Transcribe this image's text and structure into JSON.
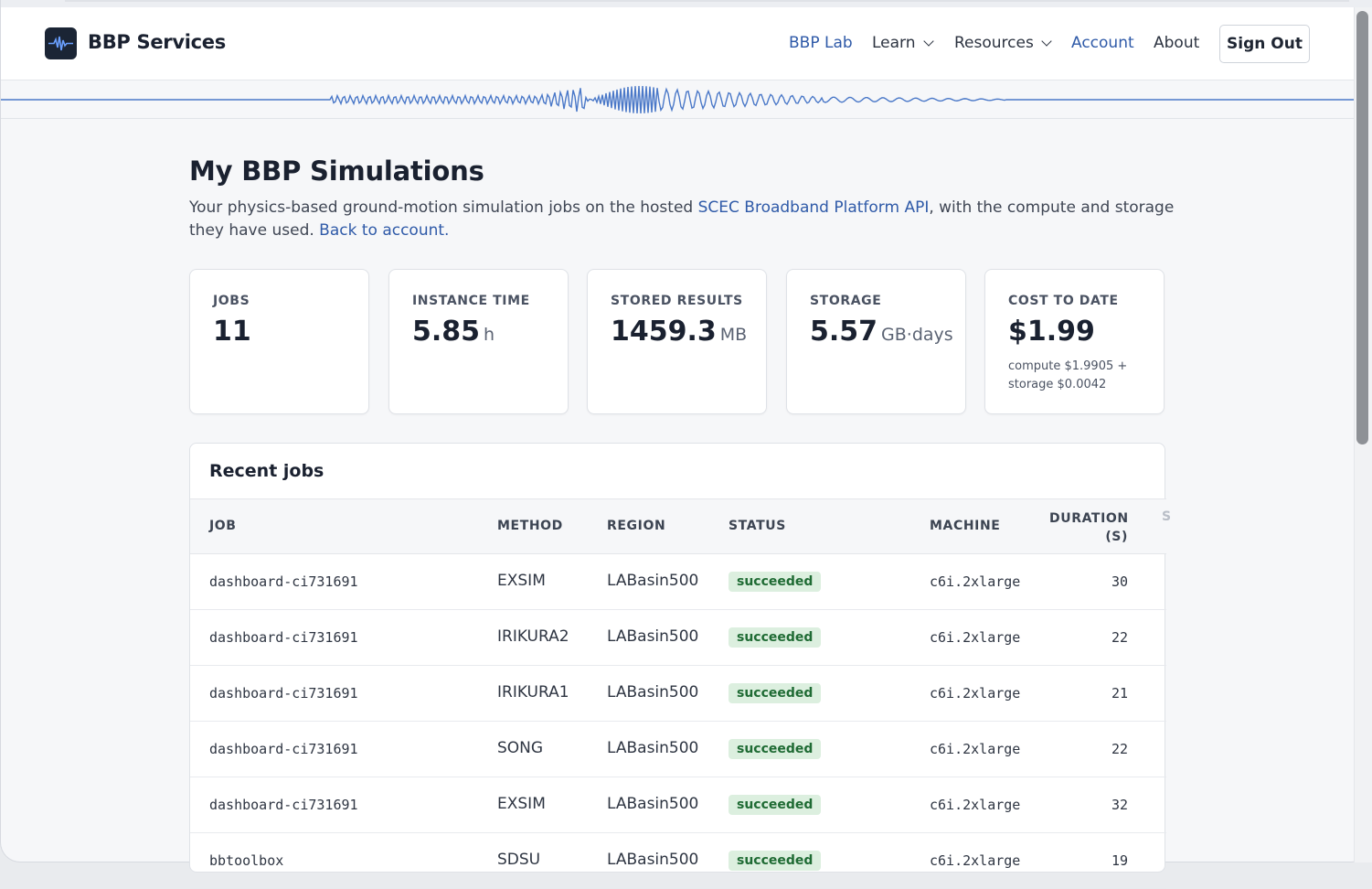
{
  "nav": {
    "brand": "BBP Services",
    "links": [
      {
        "label": "BBP Lab",
        "active": true,
        "dropdown": false
      },
      {
        "label": "Learn",
        "active": false,
        "dropdown": true
      },
      {
        "label": "Resources",
        "active": false,
        "dropdown": true
      },
      {
        "label": "Account",
        "active": true,
        "dropdown": false
      },
      {
        "label": "About",
        "active": false,
        "dropdown": false
      }
    ],
    "sign_out": "Sign Out"
  },
  "page": {
    "title": "My BBP Simulations",
    "subtitle_pre": "Your physics-based ground-motion simulation jobs on the hosted ",
    "subtitle_link": "SCEC Broadband Platform API",
    "subtitle_mid": ", with the compute and storage they have used. ",
    "back_link": "Back to account."
  },
  "stats": [
    {
      "label": "JOBS",
      "value": "11",
      "unit": ""
    },
    {
      "label": "INSTANCE TIME",
      "value": "5.85",
      "unit": "h"
    },
    {
      "label": "STORED RESULTS",
      "value": "1459.3",
      "unit": "MB"
    },
    {
      "label": "STORAGE",
      "value": "5.57",
      "unit": "GB·days"
    },
    {
      "label": "COST TO DATE",
      "value": "$1.99",
      "unit": "",
      "note": "compute $1.9905 + storage $0.0042"
    }
  ],
  "jobs": {
    "title": "Recent jobs",
    "columns": [
      "JOB",
      "METHOD",
      "REGION",
      "STATUS",
      "MACHINE",
      "DURATION (S)",
      "S"
    ],
    "rows": [
      {
        "job": "dashboard-ci731691",
        "method": "EXSIM",
        "region": "LABasin500",
        "status": "succeeded",
        "machine": "c6i.2xlarge",
        "duration": "30"
      },
      {
        "job": "dashboard-ci731691",
        "method": "IRIKURA2",
        "region": "LABasin500",
        "status": "succeeded",
        "machine": "c6i.2xlarge",
        "duration": "22"
      },
      {
        "job": "dashboard-ci731691",
        "method": "IRIKURA1",
        "region": "LABasin500",
        "status": "succeeded",
        "machine": "c6i.2xlarge",
        "duration": "21"
      },
      {
        "job": "dashboard-ci731691",
        "method": "SONG",
        "region": "LABasin500",
        "status": "succeeded",
        "machine": "c6i.2xlarge",
        "duration": "22"
      },
      {
        "job": "dashboard-ci731691",
        "method": "EXSIM",
        "region": "LABasin500",
        "status": "succeeded",
        "machine": "c6i.2xlarge",
        "duration": "32"
      },
      {
        "job": "bbtoolbox",
        "method": "SDSU",
        "region": "LABasin500",
        "status": "succeeded",
        "machine": "c6i.2xlarge",
        "duration": "19"
      }
    ]
  },
  "colors": {
    "accent": "#2f5aa8",
    "success_bg": "#dcefdf",
    "success_fg": "#1f6b34",
    "wave": "#4a78c8"
  }
}
